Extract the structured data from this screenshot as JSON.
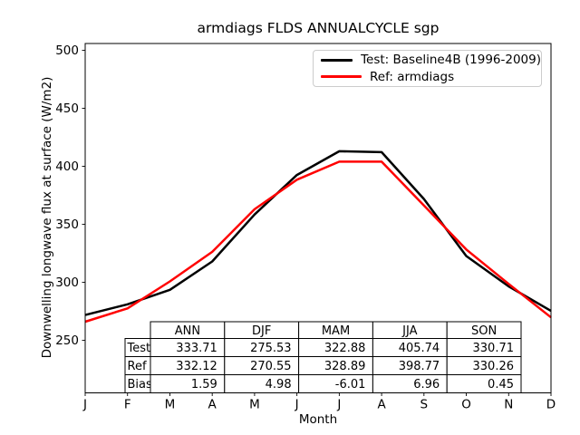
{
  "chart_data": {
    "type": "line",
    "title": "armdiags FLDS ANNUALCYCLE sgp",
    "xlabel": "Month",
    "ylabel": "Downwelling longwave flux at surface (W/m2)",
    "x_labels": [
      "J",
      "F",
      "M",
      "A",
      "M",
      "J",
      "J",
      "A",
      "S",
      "O",
      "N",
      "D"
    ],
    "yticks": [
      250,
      300,
      350,
      400,
      450,
      500
    ],
    "ylim": [
      204.7,
      505.9
    ],
    "grid": false,
    "legend_position": "upper right",
    "series": [
      {
        "name": "Test: Baseline4B (1996-2009)",
        "color": "#000000",
        "values": [
          271.8,
          281.0,
          293.5,
          318.0,
          358.5,
          392.5,
          413.0,
          412.2,
          371.8,
          322.7,
          296.5,
          275.3
        ]
      },
      {
        "name": "Ref: armdiags",
        "color": "#ff0000",
        "values": [
          266.0,
          277.5,
          300.8,
          326.3,
          363.0,
          388.5,
          404.0,
          404.0,
          366.3,
          328.3,
          298.6,
          269.8
        ]
      }
    ],
    "stats_table": {
      "col_headers": [
        "ANN",
        "DJF",
        "MAM",
        "JJA",
        "SON"
      ],
      "rows": [
        {
          "label": "Test",
          "values": [
            "333.71",
            "275.53",
            "322.88",
            "405.74",
            "330.71"
          ]
        },
        {
          "label": "Ref",
          "values": [
            "332.12",
            "270.55",
            "328.89",
            "398.77",
            "330.26"
          ]
        },
        {
          "label": "Bias",
          "values": [
            "1.59",
            "4.98",
            "-6.01",
            "6.96",
            "0.45"
          ]
        }
      ]
    }
  }
}
